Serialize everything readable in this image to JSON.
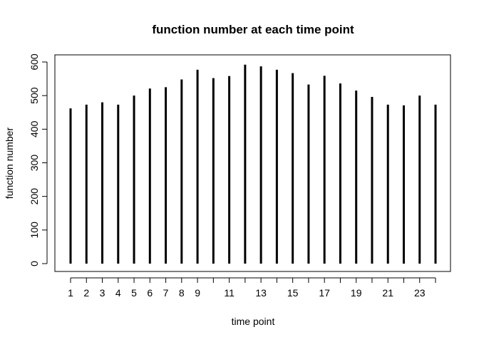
{
  "chart_data": {
    "type": "bar",
    "style": "vertical-lines",
    "title": "function number at each time point",
    "xlabel": "time point",
    "ylabel": "function number",
    "categories": [
      1,
      2,
      3,
      4,
      5,
      6,
      7,
      8,
      9,
      10,
      11,
      12,
      13,
      14,
      15,
      16,
      17,
      18,
      19,
      20,
      21,
      22,
      23,
      24
    ],
    "x_tick_labels": [
      "1",
      "2",
      "3",
      "4",
      "5",
      "6",
      "7",
      "8",
      "9",
      "",
      "11",
      "",
      "13",
      "",
      "15",
      "",
      "17",
      "",
      "19",
      "",
      "21",
      "",
      "23",
      ""
    ],
    "values": [
      462,
      473,
      480,
      473,
      500,
      521,
      525,
      548,
      577,
      552,
      558,
      592,
      587,
      577,
      567,
      533,
      559,
      536,
      515,
      496,
      473,
      471,
      500,
      473
    ],
    "ylim": [
      0,
      600
    ],
    "y_ticks": [
      0,
      100,
      200,
      300,
      400,
      500,
      600
    ],
    "grid": false,
    "legend": "none",
    "line_color": "#000000"
  }
}
